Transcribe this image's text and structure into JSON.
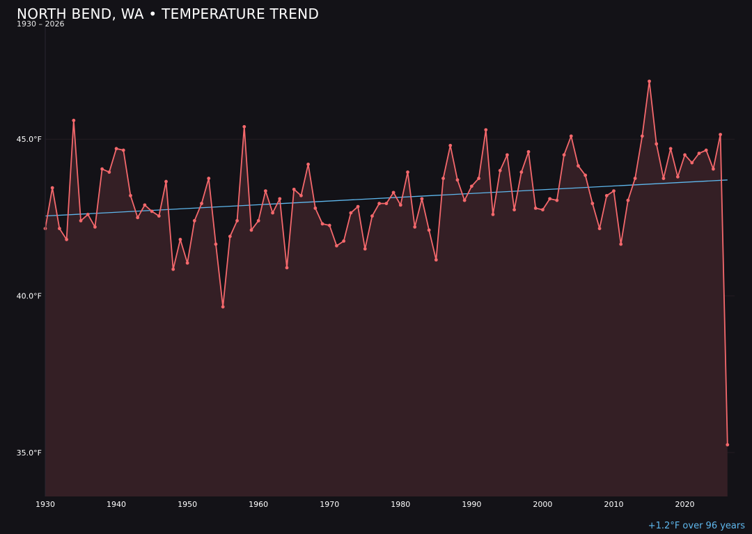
{
  "title": "NORTH BEND, WA • TEMPERATURE TREND",
  "subtitle": "1930 – 2026",
  "footnote": "+1.2°F over 96 years",
  "colors": {
    "background": "#131217",
    "series": "#f4686c",
    "area": "#341f25",
    "trend": "#5fb8ee",
    "grid": "#241c22"
  },
  "chart_data": {
    "type": "line",
    "title": "NORTH BEND, WA • TEMPERATURE TREND",
    "subtitle": "1930 – 2026",
    "xlabel": "",
    "ylabel": "",
    "xlim": [
      1930,
      2027
    ],
    "ylim": [
      33.6,
      48.6
    ],
    "x_ticks": [
      1930,
      1940,
      1950,
      1960,
      1970,
      1980,
      1990,
      2000,
      2010,
      2020
    ],
    "y_ticks": [
      {
        "value": 35,
        "label": "35.0°F"
      },
      {
        "value": 40,
        "label": "40.0°F"
      },
      {
        "value": 45,
        "label": "45.0°F"
      }
    ],
    "grid": true,
    "area_fill": true,
    "x": [
      1930,
      1931,
      1932,
      1933,
      1934,
      1935,
      1936,
      1937,
      1938,
      1939,
      1940,
      1941,
      1942,
      1943,
      1944,
      1945,
      1946,
      1947,
      1948,
      1949,
      1950,
      1951,
      1952,
      1953,
      1954,
      1955,
      1956,
      1957,
      1958,
      1959,
      1960,
      1961,
      1962,
      1963,
      1964,
      1965,
      1966,
      1967,
      1968,
      1969,
      1970,
      1971,
      1972,
      1973,
      1974,
      1975,
      1976,
      1977,
      1978,
      1979,
      1980,
      1981,
      1982,
      1983,
      1984,
      1985,
      1986,
      1987,
      1988,
      1989,
      1990,
      1991,
      1992,
      1993,
      1994,
      1995,
      1996,
      1997,
      1998,
      1999,
      2000,
      2001,
      2002,
      2003,
      2004,
      2005,
      2006,
      2007,
      2008,
      2009,
      2010,
      2011,
      2012,
      2013,
      2014,
      2015,
      2016,
      2017,
      2018,
      2019,
      2020,
      2021,
      2022,
      2023,
      2024,
      2025,
      2026
    ],
    "series": [
      {
        "values": [
          42.15,
          43.45,
          42.15,
          41.8,
          45.6,
          42.4,
          42.6,
          42.2,
          44.05,
          43.95,
          44.7,
          44.65,
          43.2,
          42.5,
          42.9,
          42.7,
          42.55,
          43.65,
          40.85,
          41.8,
          41.05,
          42.4,
          42.95,
          43.75,
          41.65,
          39.65,
          41.9,
          42.4,
          45.4,
          42.1,
          42.4,
          43.35,
          42.65,
          43.1,
          40.9,
          43.4,
          43.2,
          44.2,
          42.8,
          42.3,
          42.25,
          41.6,
          41.75,
          42.65,
          42.85,
          41.5,
          42.55,
          42.95,
          42.95,
          43.3,
          42.9,
          43.95,
          42.2,
          43.1,
          42.1,
          41.15,
          43.75,
          44.8,
          43.7,
          43.05,
          43.5,
          43.75,
          45.3,
          42.6,
          44,
          44.5,
          42.75,
          43.95,
          44.6,
          42.8,
          42.75,
          43.1,
          43.05,
          44.5,
          45.1,
          44.15,
          43.85,
          42.95,
          42.15,
          43.2,
          43.35,
          41.65,
          43.05,
          43.75,
          45.1,
          46.85,
          44.85,
          43.75,
          44.7,
          43.8,
          44.5,
          44.25,
          44.55,
          44.65,
          44.05,
          45.15,
          35.25
        ]
      }
    ],
    "trend": {
      "start_year": 1930,
      "start_value": 42.55,
      "end_year": 2026,
      "end_value": 43.7
    }
  }
}
